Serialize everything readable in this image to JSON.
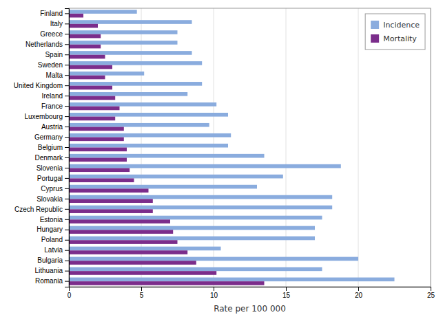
{
  "chart_data": {
    "type": "bar",
    "orientation": "horizontal",
    "categories": [
      "Finland",
      "Italy",
      "Greece",
      "Netherlands",
      "Spain",
      "Sweden",
      "Malta",
      "United Kingdom",
      "Ireland",
      "France",
      "Luxembourg",
      "Austria",
      "Germany",
      "Belgium",
      "Denmark",
      "Slovenia",
      "Portugal",
      "Cyprus",
      "Slovakia",
      "Czech Republic",
      "Estonia",
      "Hungary",
      "Poland",
      "Latvia",
      "Bulgaria",
      "Lithuania",
      "Romania"
    ],
    "series": [
      {
        "name": "Incidence",
        "color": "#8AACDE",
        "values": [
          4.7,
          8.5,
          7.5,
          7.5,
          8.5,
          9.2,
          5.2,
          9.2,
          8.2,
          10.2,
          11.0,
          9.7,
          11.2,
          11.0,
          13.5,
          18.8,
          14.8,
          13.0,
          18.2,
          18.2,
          17.5,
          17.0,
          17.0,
          10.5,
          20.0,
          17.5,
          22.5
        ]
      },
      {
        "name": "Mortality",
        "color": "#7B2D8B",
        "values": [
          1.0,
          2.0,
          2.2,
          2.2,
          2.5,
          3.0,
          2.5,
          3.0,
          3.2,
          3.5,
          3.2,
          3.8,
          3.8,
          4.0,
          4.0,
          4.2,
          4.5,
          5.5,
          5.8,
          5.8,
          7.0,
          7.2,
          7.5,
          8.2,
          8.8,
          10.2,
          13.5
        ]
      }
    ],
    "xlabel": "Rate per 100 000",
    "xlim": [
      0,
      25
    ],
    "xticks": [
      0,
      5,
      10,
      15,
      20,
      25
    ],
    "grid": true,
    "legend": "upper right"
  }
}
